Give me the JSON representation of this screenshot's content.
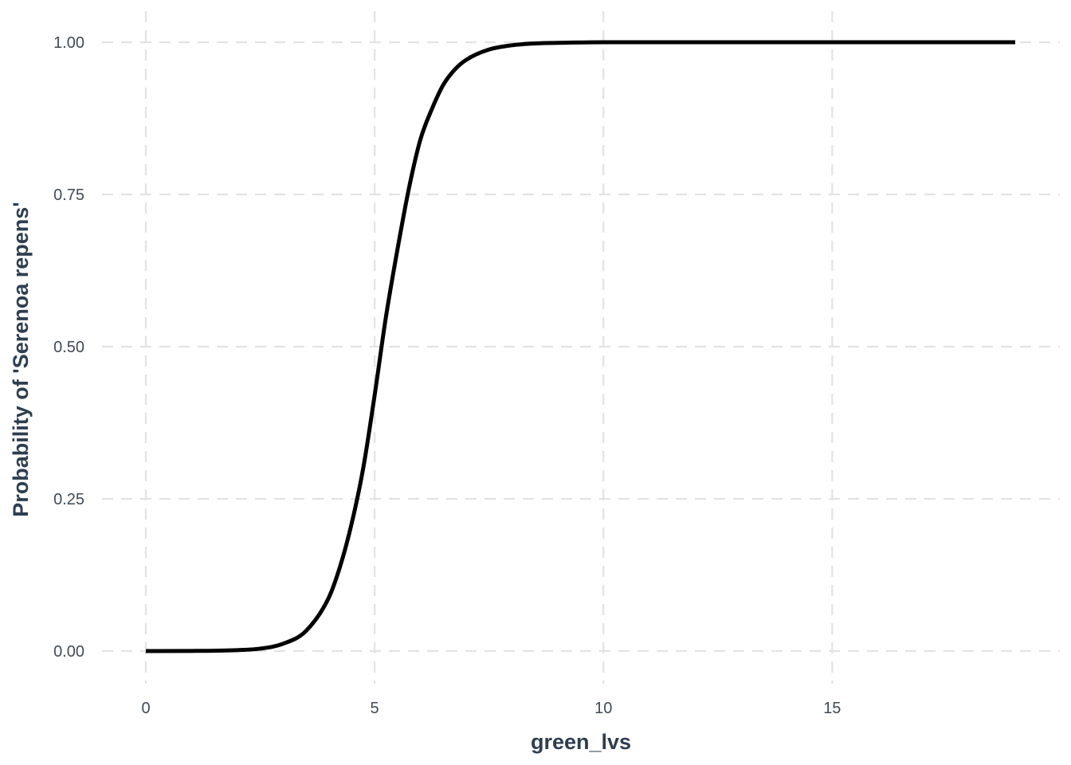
{
  "chart_data": {
    "type": "line",
    "title": "",
    "xlabel": "green_lvs",
    "ylabel": "Probability of 'Serenoa repens'",
    "xlim": [
      0,
      19
    ],
    "ylim": [
      0,
      1
    ],
    "x_ticks": [
      0,
      5,
      10,
      15
    ],
    "x_tick_labels": [
      "0",
      "5",
      "10",
      "15"
    ],
    "y_ticks": [
      0,
      0.25,
      0.5,
      0.75,
      1
    ],
    "y_tick_labels": [
      "0.00",
      "0.25",
      "0.50",
      "0.75",
      "1.00"
    ],
    "grid": true,
    "legend": "none",
    "series": [
      {
        "color": "#000000",
        "x": [
          0,
          1,
          2,
          2.5,
          3,
          3.5,
          4,
          4.25,
          4.5,
          4.75,
          5,
          5.25,
          5.5,
          5.75,
          6,
          6.25,
          6.5,
          6.75,
          7,
          7.5,
          8,
          8.5,
          9,
          10,
          12,
          15,
          19
        ],
        "y": [
          0.0,
          0.0002,
          0.0015,
          0.004,
          0.012,
          0.033,
          0.088,
          0.14,
          0.21,
          0.3,
          0.42,
          0.55,
          0.66,
          0.76,
          0.84,
          0.89,
          0.93,
          0.955,
          0.971,
          0.988,
          0.995,
          0.998,
          0.999,
          1.0,
          1.0,
          1.0,
          1.0
        ]
      }
    ]
  }
}
